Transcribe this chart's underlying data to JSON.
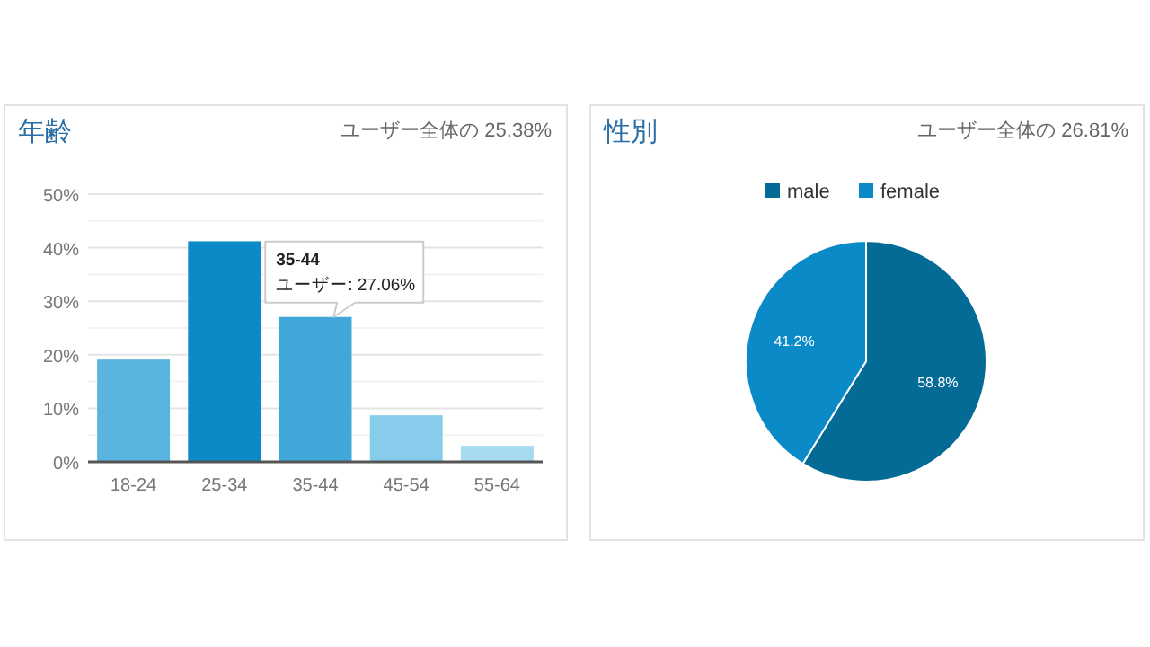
{
  "chart_data": [
    {
      "type": "bar",
      "title": "年齢",
      "subtitle": "ユーザー全体の 25.38%",
      "categories": [
        "18-24",
        "25-34",
        "35-44",
        "45-54",
        "55-64"
      ],
      "values": [
        19.1,
        41.2,
        27.06,
        8.7,
        3.0
      ],
      "colors": [
        "#5ab4e0",
        "#0a8ac6",
        "#40a8d8",
        "#88cceb",
        "#a6dbf1"
      ],
      "ylim": [
        0,
        50
      ],
      "yticks": [
        {
          "value": 0,
          "label": "0%"
        },
        {
          "value": 5,
          "label": null
        },
        {
          "value": 10,
          "label": "10%"
        },
        {
          "value": 15,
          "label": null
        },
        {
          "value": 20,
          "label": "20%"
        },
        {
          "value": 25,
          "label": null
        },
        {
          "value": 30,
          "label": "30%"
        },
        {
          "value": 35,
          "label": null
        },
        {
          "value": 40,
          "label": "40%"
        },
        {
          "value": 45,
          "label": null
        },
        {
          "value": 50,
          "label": "50%"
        }
      ],
      "grid": "y",
      "annotations": [
        {
          "text": "35-44\nユーザー: 27.06%",
          "x": "35-44",
          "y": 27.06
        }
      ]
    },
    {
      "type": "pie",
      "title": "性別",
      "subtitle": "ユーザー全体の 26.81%",
      "categories": [
        "male",
        "female"
      ],
      "values": [
        58.8,
        41.2
      ],
      "colors": [
        "#046a96",
        "#0b8ac8"
      ],
      "value_labels": [
        "58.8%",
        "41.2%"
      ],
      "legend": "top"
    }
  ]
}
